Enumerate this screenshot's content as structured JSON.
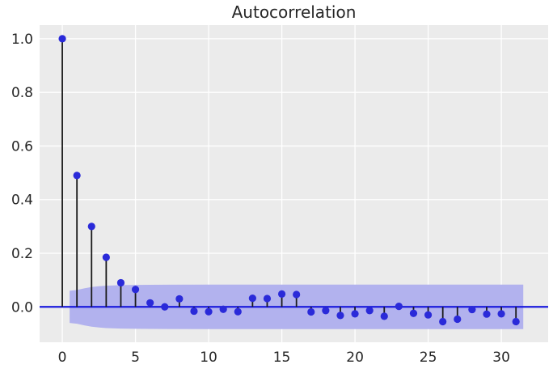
{
  "figure": {
    "background": "#ffffff",
    "plot_background": "#ebebeb",
    "grid_color": "#ffffff",
    "marker_color": "#2a2ad9",
    "zero_line_color": "#1c1cdd",
    "stem_color": "#1a1a1a",
    "band_color": "#b2b2ee",
    "text_color": "#262626"
  },
  "chart_data": {
    "type": "stem",
    "title": "Autocorrelation",
    "xlabel": "",
    "ylabel": "",
    "grid": true,
    "legend": null,
    "x": [
      0,
      1,
      2,
      3,
      4,
      5,
      6,
      7,
      8,
      9,
      10,
      11,
      12,
      13,
      14,
      15,
      16,
      17,
      18,
      19,
      20,
      21,
      22,
      23,
      24,
      25,
      26,
      27,
      28,
      29,
      30,
      31
    ],
    "values": [
      1.0,
      0.49,
      0.3,
      0.185,
      0.09,
      0.065,
      0.015,
      0.0,
      0.03,
      -0.016,
      -0.018,
      -0.009,
      -0.018,
      0.032,
      0.031,
      0.048,
      0.046,
      -0.019,
      -0.014,
      -0.032,
      -0.026,
      -0.014,
      -0.035,
      0.002,
      -0.024,
      -0.03,
      -0.055,
      -0.046,
      -0.01,
      -0.027,
      -0.026,
      -0.055
    ],
    "zero_line": 0,
    "confidence_band": {
      "x": [
        0.5,
        1.0,
        1.5,
        2.0,
        2.5,
        3.0,
        4.0,
        5.0,
        7.0,
        10.0,
        31.5
      ],
      "upper": [
        0.06,
        0.063,
        0.069,
        0.074,
        0.077,
        0.079,
        0.081,
        0.082,
        0.0825,
        0.083,
        0.083
      ],
      "lower": [
        -0.06,
        -0.063,
        -0.069,
        -0.074,
        -0.077,
        -0.079,
        -0.081,
        -0.082,
        -0.0825,
        -0.083,
        -0.083
      ]
    },
    "xticks": [
      0,
      5,
      10,
      15,
      20,
      25,
      30
    ],
    "yticks": [
      "0.0",
      "0.2",
      "0.4",
      "0.6",
      "0.8",
      "1.0"
    ],
    "xlim": [
      -1.55,
      33.2
    ],
    "ylim": [
      -0.132,
      1.051
    ]
  }
}
